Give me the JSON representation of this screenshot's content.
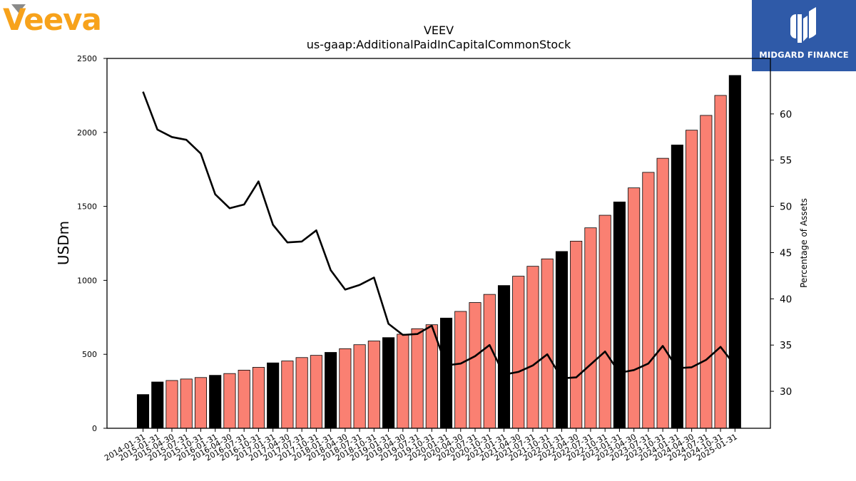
{
  "branding": {
    "company_logo": "Veeva",
    "company_logo_color": "#f7a21b",
    "publisher_logo_text": "MIDGARD FINANCE",
    "publisher_logo_bg": "#2f5aa8"
  },
  "chart_data": {
    "type": "bar",
    "title": "VEEV",
    "subtitle": "us-gaap:AdditionalPaidInCapitalCommonStock",
    "ylabel": "USDm",
    "ylabel_right": "Percentage of Assets",
    "ylim": [
      0,
      2500
    ],
    "ylim_right": [
      26,
      66
    ],
    "yticks": [
      0,
      500,
      1000,
      1500,
      2000,
      2500
    ],
    "yticks_right": [
      30,
      35,
      40,
      45,
      50,
      55,
      60
    ],
    "grid": false,
    "bar_colors": {
      "annual": "#000000",
      "quarterly": "#fa8072"
    },
    "line_color": "#000000",
    "categories": [
      "2014-01-31",
      "2015-01-31",
      "2015-04-30",
      "2015-07-31",
      "2015-10-31",
      "2016-01-31",
      "2016-04-30",
      "2016-07-31",
      "2016-10-31",
      "2017-01-31",
      "2017-04-30",
      "2017-07-31",
      "2017-10-31",
      "2018-01-31",
      "2018-04-30",
      "2018-07-31",
      "2018-10-31",
      "2019-01-31",
      "2019-04-30",
      "2019-07-31",
      "2019-10-31",
      "2020-01-31",
      "2020-04-30",
      "2020-07-31",
      "2020-10-31",
      "2021-01-31",
      "2021-04-30",
      "2021-07-31",
      "2021-10-31",
      "2022-01-31",
      "2022-04-30",
      "2022-07-31",
      "2022-10-31",
      "2023-01-31",
      "2023-04-30",
      "2023-07-31",
      "2023-10-31",
      "2024-01-31",
      "2024-04-30",
      "2024-07-31",
      "2024-10-31",
      "2025-01-31"
    ],
    "series": [
      {
        "kind": "bar",
        "values": [
          228,
          313,
          323,
          333,
          343,
          358,
          370,
          393,
          412,
          442,
          455,
          478,
          493,
          513,
          538,
          565,
          590,
          613,
          636,
          673,
          700,
          745,
          790,
          850,
          905,
          965,
          1028,
          1095,
          1145,
          1195,
          1265,
          1355,
          1440,
          1530,
          1625,
          1730,
          1825,
          1915,
          2015,
          2115,
          2250,
          2385
        ],
        "annual": [
          true,
          true,
          false,
          false,
          false,
          true,
          false,
          false,
          false,
          true,
          false,
          false,
          false,
          true,
          false,
          false,
          false,
          true,
          false,
          false,
          false,
          true,
          false,
          false,
          false,
          true,
          false,
          false,
          false,
          true,
          false,
          false,
          false,
          true,
          false,
          false,
          false,
          true,
          false,
          false,
          false,
          true
        ]
      },
      {
        "kind": "line",
        "name": "Percentage of Assets",
        "values": [
          62.4,
          58.3,
          57.5,
          57.2,
          55.7,
          51.3,
          49.8,
          50.2,
          52.7,
          48.0,
          46.1,
          46.2,
          47.4,
          43.1,
          41.0,
          41.5,
          42.3,
          37.3,
          36.1,
          36.2,
          37.1,
          32.8,
          33.0,
          33.8,
          35.0,
          31.8,
          32.1,
          32.8,
          34.0,
          31.4,
          31.5,
          32.9,
          34.3,
          32.0,
          32.3,
          33.0,
          34.9,
          32.5,
          32.6,
          33.4,
          34.8,
          32.8
        ]
      }
    ]
  }
}
